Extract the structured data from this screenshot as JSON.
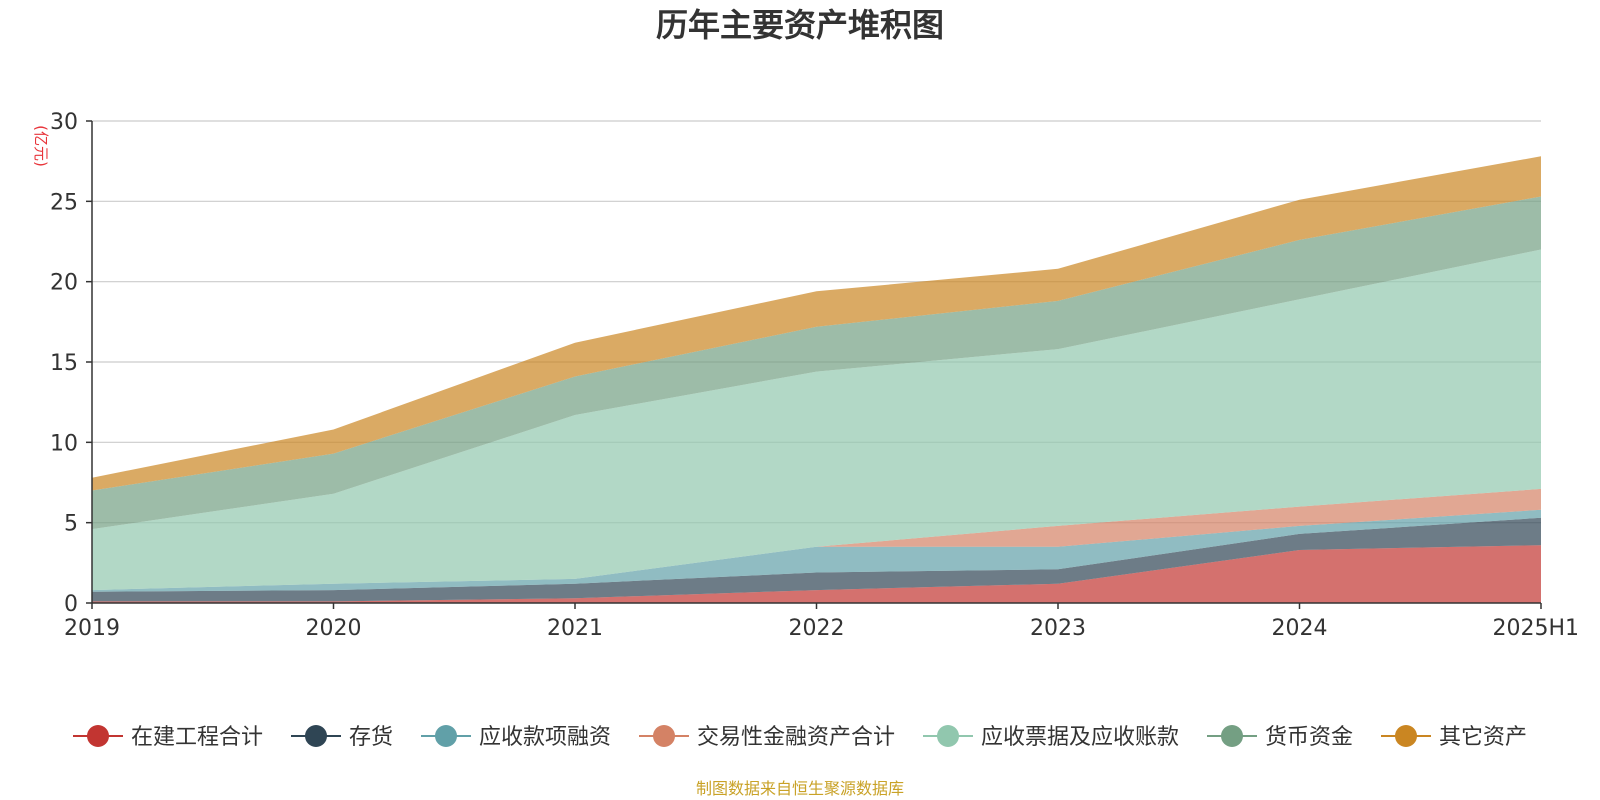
{
  "chart_data": {
    "type": "area",
    "stacked": true,
    "title": "历年主要资产堆积图",
    "unit_label": "(亿元)",
    "categories": [
      "2019",
      "2020",
      "2021",
      "2022",
      "2023",
      "2024",
      "2025H1"
    ],
    "ylim": [
      0,
      30
    ],
    "yticks": [
      0,
      5,
      10,
      15,
      20,
      25,
      30
    ],
    "grid": true,
    "legend_position": "bottom",
    "series": [
      {
        "name": "在建工程合计",
        "color": "#c23531",
        "values": [
          0.1,
          0.1,
          0.3,
          0.8,
          1.2,
          3.3,
          3.6
        ]
      },
      {
        "name": "存货",
        "color": "#2f4554",
        "values": [
          0.6,
          0.7,
          0.9,
          1.1,
          0.9,
          1.0,
          1.7
        ]
      },
      {
        "name": "应收款项融资",
        "color": "#61a0a8",
        "values": [
          0.1,
          0.4,
          0.3,
          1.6,
          1.4,
          0.5,
          0.5
        ]
      },
      {
        "name": "交易性金融资产合计",
        "color": "#d48265",
        "values": [
          0.0,
          0.0,
          0.0,
          0.0,
          1.3,
          1.2,
          1.3
        ]
      },
      {
        "name": "应收票据及应收账款",
        "color": "#91c7ae",
        "values": [
          3.8,
          5.6,
          10.2,
          10.9,
          11.0,
          12.9,
          14.9
        ]
      },
      {
        "name": "货币资金",
        "color": "#749f83",
        "values": [
          2.4,
          2.5,
          2.4,
          2.8,
          3.0,
          3.7,
          3.3
        ]
      },
      {
        "name": "其它资产",
        "color": "#ca8622",
        "values": [
          0.8,
          1.5,
          2.1,
          2.2,
          2.0,
          2.5,
          2.5
        ]
      }
    ]
  },
  "source_note": "制图数据来自恒生聚源数据库"
}
